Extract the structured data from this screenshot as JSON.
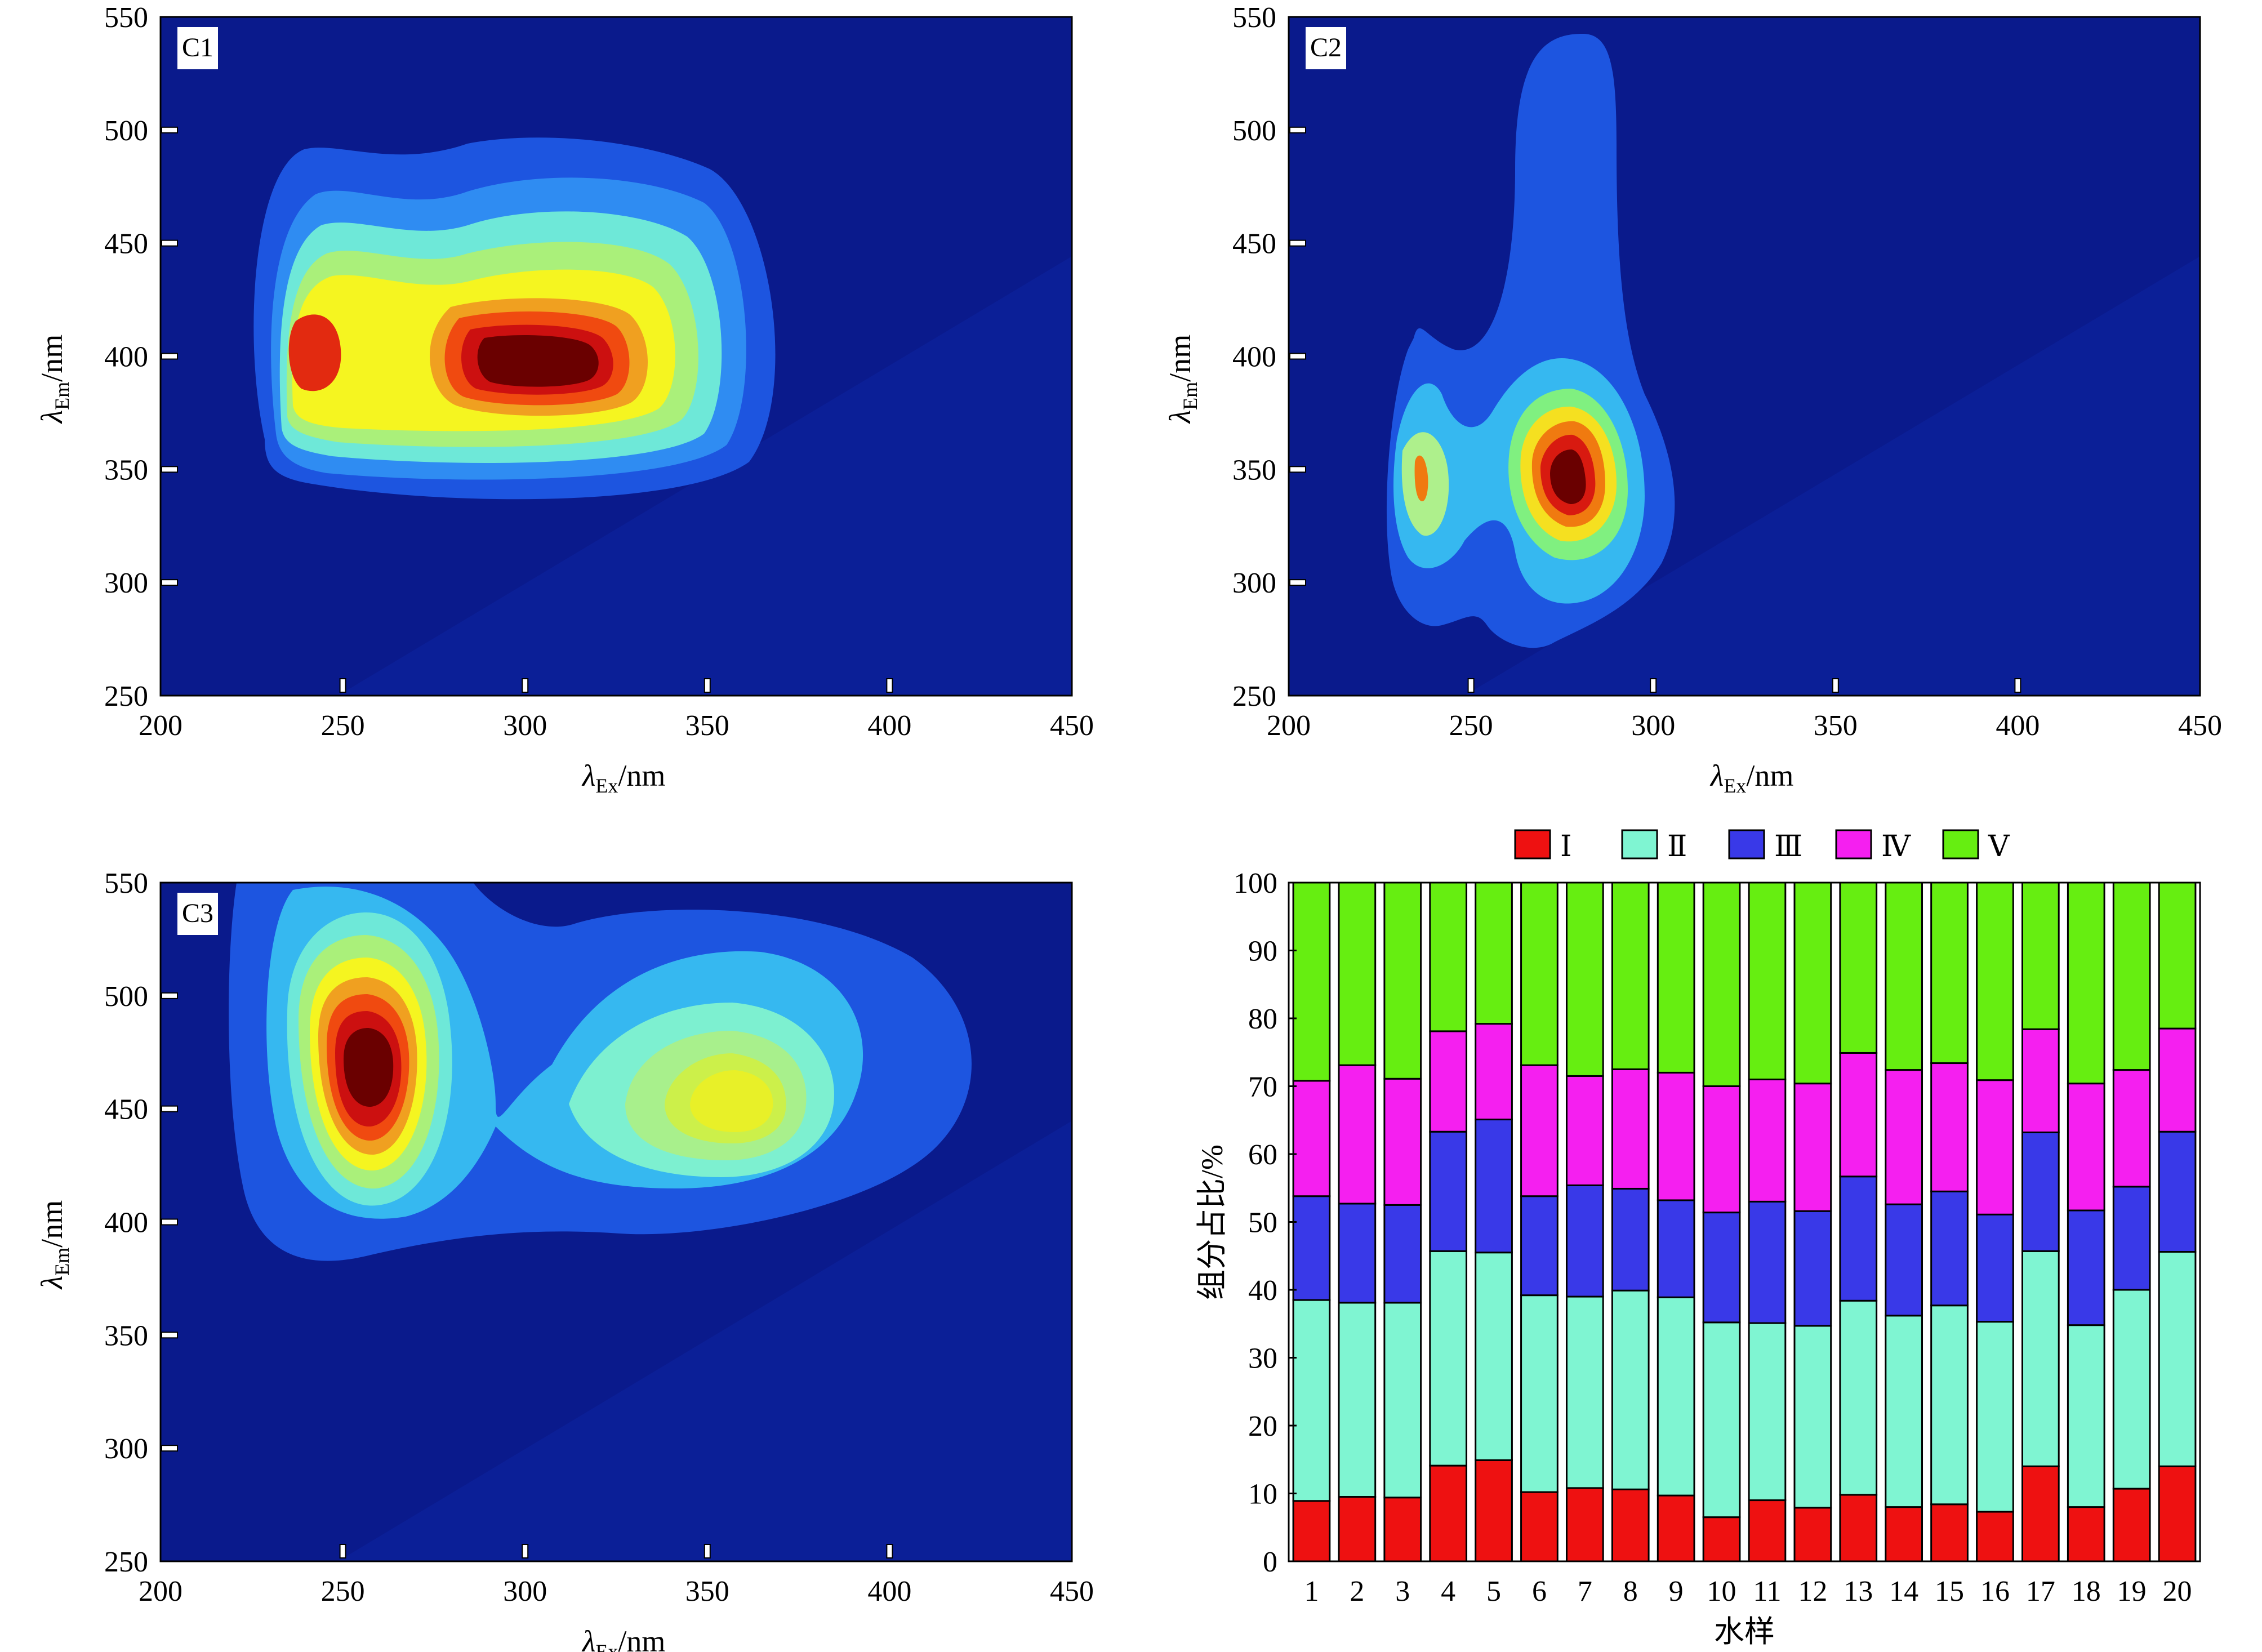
{
  "chart_data": [
    {
      "type": "heatmap",
      "panel_label": "C1",
      "xlabel_symbol": "λ",
      "xlabel_sub": "Ex",
      "xlabel_unit": "/nm",
      "ylabel_symbol": "λ",
      "ylabel_sub": "Em",
      "ylabel_unit": "/nm",
      "xlim": [
        200,
        450
      ],
      "ylim": [
        250,
        550
      ],
      "xticks": [
        200,
        250,
        300,
        350,
        400,
        450
      ],
      "yticks": [
        250,
        300,
        350,
        400,
        450,
        500,
        550
      ],
      "peaks": [
        {
          "ex": 243,
          "em": 403,
          "level": 0.92
        },
        {
          "ex": 302,
          "em": 402,
          "level": 1.0
        }
      ]
    },
    {
      "type": "heatmap",
      "panel_label": "C2",
      "xlabel_symbol": "λ",
      "xlabel_sub": "Ex",
      "xlabel_unit": "/nm",
      "ylabel_symbol": "λ",
      "ylabel_sub": "Em",
      "ylabel_unit": "/nm",
      "xlim": [
        200,
        450
      ],
      "ylim": [
        250,
        550
      ],
      "xticks": [
        200,
        250,
        300,
        350,
        400,
        450
      ],
      "yticks": [
        250,
        300,
        350,
        400,
        450,
        500,
        550
      ],
      "peaks": [
        {
          "ex": 235,
          "em": 348,
          "level": 0.55
        },
        {
          "ex": 279,
          "em": 348,
          "level": 1.0
        }
      ]
    },
    {
      "type": "heatmap",
      "panel_label": "C3",
      "xlabel_symbol": "λ",
      "xlabel_sub": "Ex",
      "xlabel_unit": "/nm",
      "ylabel_symbol": "λ",
      "ylabel_sub": "Em",
      "ylabel_unit": "/nm",
      "xlim": [
        200,
        450
      ],
      "ylim": [
        250,
        550
      ],
      "xticks": [
        200,
        250,
        300,
        350,
        400,
        450
      ],
      "yticks": [
        250,
        300,
        350,
        400,
        450,
        500,
        550
      ],
      "peaks": [
        {
          "ex": 258,
          "em": 455,
          "level": 1.0
        },
        {
          "ex": 358,
          "em": 452,
          "level": 0.55
        }
      ]
    },
    {
      "type": "bar",
      "stacked": true,
      "xlabel": "水样",
      "ylabel": "组分占比/%",
      "ylim": [
        0,
        100
      ],
      "yticks": [
        0,
        10,
        20,
        30,
        40,
        50,
        60,
        70,
        80,
        90,
        100
      ],
      "categories": [
        "1",
        "2",
        "3",
        "4",
        "5",
        "6",
        "7",
        "8",
        "9",
        "10",
        "11",
        "12",
        "13",
        "14",
        "15",
        "16",
        "17",
        "18",
        "19",
        "20"
      ],
      "legend_position": "top",
      "series": [
        {
          "name": "Ⅰ",
          "color": "#ee1111",
          "values": [
            8.9,
            9.5,
            9.4,
            14.1,
            14.9,
            10.2,
            10.8,
            10.6,
            9.7,
            6.5,
            9.0,
            7.9,
            9.8,
            8.0,
            8.4,
            7.3,
            14.0,
            8.0,
            10.7,
            14.0
          ]
        },
        {
          "name": "Ⅱ",
          "color": "#7ff5d2",
          "values": [
            29.6,
            28.6,
            28.7,
            31.6,
            30.6,
            29.0,
            28.2,
            29.3,
            29.2,
            28.7,
            26.1,
            26.8,
            28.6,
            28.2,
            29.3,
            28.0,
            31.7,
            26.8,
            29.3,
            31.6
          ]
        },
        {
          "name": "Ⅲ",
          "color": "#3939e8",
          "values": [
            15.3,
            14.6,
            14.4,
            17.6,
            19.6,
            14.6,
            16.4,
            15.0,
            14.3,
            16.2,
            17.9,
            16.9,
            18.3,
            16.4,
            16.8,
            15.8,
            17.5,
            16.9,
            15.2,
            17.7
          ]
        },
        {
          "name": "Ⅳ",
          "color": "#f51ff0",
          "values": [
            17.0,
            20.4,
            18.6,
            14.8,
            14.1,
            19.3,
            16.1,
            17.6,
            18.8,
            18.6,
            18.0,
            18.8,
            18.2,
            19.8,
            18.9,
            19.8,
            15.2,
            18.7,
            17.2,
            15.2
          ]
        },
        {
          "name": "Ⅴ",
          "color": "#66ee11",
          "values": [
            29.2,
            26.9,
            28.9,
            21.9,
            20.8,
            26.9,
            28.5,
            27.5,
            28.0,
            30.0,
            29.0,
            29.6,
            25.1,
            27.6,
            26.6,
            29.1,
            21.6,
            29.6,
            27.6,
            21.5
          ]
        }
      ]
    }
  ]
}
